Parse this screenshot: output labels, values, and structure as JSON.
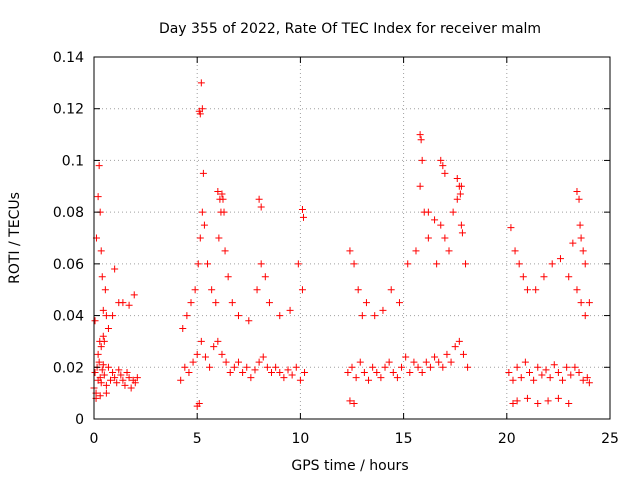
{
  "chart_data": {
    "type": "scatter",
    "title": "Day 355 of 2022, Rate Of TEC Index for receiver malm",
    "xlabel": "GPS time / hours",
    "ylabel": "ROTI / TECUs",
    "xlim": [
      0,
      25
    ],
    "ylim": [
      0,
      0.14
    ],
    "xticks": [
      0,
      5,
      10,
      15,
      20,
      25
    ],
    "xtick_labels": [
      "0",
      "5",
      "10",
      "15",
      "20",
      "25"
    ],
    "yticks": [
      0,
      0.02,
      0.04,
      0.06,
      0.08,
      0.1,
      0.12,
      0.14
    ],
    "ytick_labels": [
      "0",
      "0.02",
      "0.04",
      "0.06",
      "0.08",
      "0.1",
      "0.12",
      "0.14"
    ],
    "grid": true,
    "marker": "plus",
    "color": "#ff0000",
    "series": [
      {
        "x": [
          0.0,
          0.05,
          0.1,
          0.15,
          0.2,
          0.25,
          0.3,
          0.35,
          0.4,
          0.45,
          0.5,
          0.6,
          0.7,
          0.8,
          0.9,
          1.0,
          1.1,
          1.2,
          1.3,
          1.4,
          1.5,
          1.6,
          1.7,
          1.8,
          1.9,
          2.0,
          2.1,
          0.05,
          0.12,
          0.2,
          0.25,
          0.3,
          0.35,
          0.4,
          0.45,
          0.5,
          0.55,
          0.6,
          0.7,
          0.9,
          1.2,
          1.4,
          1.7,
          1.95,
          0.2,
          0.28,
          0.35,
          0.45,
          1.0,
          0.1,
          0.3,
          0.6,
          4.2,
          4.4,
          4.6,
          4.8,
          5.0,
          5.2,
          5.4,
          5.6,
          5.8,
          6.0,
          6.2,
          6.4,
          6.6,
          6.8,
          7.0,
          7.2,
          7.4,
          7.6,
          7.8,
          8.0,
          8.2,
          8.4,
          8.6,
          8.8,
          9.0,
          9.2,
          9.4,
          9.6,
          9.8,
          10.0,
          10.2,
          4.3,
          4.5,
          4.7,
          4.9,
          5.05,
          5.15,
          5.25,
          5.35,
          5.5,
          5.7,
          5.9,
          6.05,
          6.15,
          6.25,
          6.35,
          6.5,
          6.7,
          7.0,
          7.5,
          7.9,
          8.1,
          8.3,
          8.5,
          9.0,
          9.5,
          9.9,
          10.1,
          5.1,
          5.15,
          5.2,
          5.25,
          5.3,
          6.0,
          6.1,
          6.2,
          6.3,
          8.0,
          8.1,
          10.1,
          10.15,
          5.0,
          5.1,
          12.3,
          12.5,
          12.7,
          12.9,
          13.1,
          13.3,
          13.5,
          13.7,
          13.9,
          14.1,
          14.3,
          14.5,
          14.7,
          14.9,
          15.1,
          15.3,
          15.5,
          15.7,
          15.9,
          16.1,
          16.3,
          16.5,
          16.7,
          16.9,
          17.1,
          17.3,
          17.5,
          17.7,
          17.9,
          18.1,
          12.4,
          12.6,
          12.8,
          13.0,
          13.2,
          13.6,
          14.0,
          14.4,
          14.8,
          15.2,
          15.6,
          15.8,
          16.0,
          16.2,
          16.6,
          16.8,
          17.0,
          17.2,
          17.4,
          17.6,
          17.8,
          18.0,
          15.8,
          15.85,
          15.9,
          16.8,
          16.9,
          17.0,
          17.6,
          17.7,
          17.75,
          17.8,
          17.85,
          16.2,
          16.5,
          12.4,
          12.6,
          20.1,
          20.3,
          20.5,
          20.7,
          20.9,
          21.1,
          21.3,
          21.5,
          21.7,
          21.9,
          22.1,
          22.3,
          22.5,
          22.7,
          22.9,
          23.1,
          23.3,
          23.5,
          23.7,
          23.9,
          24.0,
          20.2,
          20.4,
          20.6,
          20.8,
          21.0,
          21.4,
          21.8,
          22.2,
          22.6,
          23.0,
          23.2,
          23.4,
          23.6,
          23.8,
          20.3,
          20.5,
          21.0,
          21.5,
          22.0,
          22.5,
          23.0,
          23.4,
          23.5,
          23.55,
          23.6,
          23.7,
          23.8,
          24.0
        ],
        "y": [
          0.012,
          0.018,
          0.01,
          0.02,
          0.015,
          0.022,
          0.016,
          0.014,
          0.019,
          0.021,
          0.017,
          0.013,
          0.02,
          0.015,
          0.018,
          0.016,
          0.014,
          0.019,
          0.017,
          0.015,
          0.013,
          0.018,
          0.016,
          0.012,
          0.015,
          0.014,
          0.016,
          0.038,
          0.07,
          0.086,
          0.098,
          0.08,
          0.065,
          0.055,
          0.042,
          0.03,
          0.05,
          0.04,
          0.035,
          0.04,
          0.045,
          0.045,
          0.044,
          0.048,
          0.025,
          0.03,
          0.028,
          0.032,
          0.058,
          0.008,
          0.009,
          0.01,
          0.015,
          0.02,
          0.018,
          0.022,
          0.025,
          0.03,
          0.024,
          0.02,
          0.028,
          0.03,
          0.025,
          0.022,
          0.018,
          0.02,
          0.022,
          0.018,
          0.02,
          0.016,
          0.019,
          0.022,
          0.024,
          0.02,
          0.018,
          0.02,
          0.018,
          0.016,
          0.019,
          0.017,
          0.02,
          0.015,
          0.018,
          0.035,
          0.04,
          0.045,
          0.05,
          0.06,
          0.07,
          0.08,
          0.075,
          0.06,
          0.05,
          0.045,
          0.07,
          0.08,
          0.085,
          0.065,
          0.055,
          0.045,
          0.04,
          0.038,
          0.05,
          0.06,
          0.055,
          0.045,
          0.04,
          0.042,
          0.06,
          0.05,
          0.119,
          0.118,
          0.13,
          0.12,
          0.095,
          0.088,
          0.085,
          0.087,
          0.08,
          0.085,
          0.082,
          0.081,
          0.078,
          0.005,
          0.006,
          0.018,
          0.02,
          0.016,
          0.022,
          0.018,
          0.015,
          0.02,
          0.018,
          0.016,
          0.02,
          0.022,
          0.018,
          0.016,
          0.02,
          0.024,
          0.018,
          0.022,
          0.02,
          0.018,
          0.022,
          0.02,
          0.024,
          0.022,
          0.02,
          0.025,
          0.022,
          0.028,
          0.03,
          0.025,
          0.02,
          0.065,
          0.06,
          0.05,
          0.04,
          0.045,
          0.04,
          0.042,
          0.05,
          0.045,
          0.06,
          0.065,
          0.09,
          0.08,
          0.07,
          0.06,
          0.075,
          0.07,
          0.065,
          0.08,
          0.085,
          0.09,
          0.06,
          0.11,
          0.108,
          0.1,
          0.1,
          0.098,
          0.095,
          0.093,
          0.09,
          0.087,
          0.075,
          0.072,
          0.08,
          0.077,
          0.007,
          0.006,
          0.018,
          0.015,
          0.02,
          0.016,
          0.022,
          0.018,
          0.015,
          0.02,
          0.017,
          0.019,
          0.016,
          0.021,
          0.018,
          0.015,
          0.02,
          0.017,
          0.02,
          0.018,
          0.015,
          0.016,
          0.014,
          0.074,
          0.065,
          0.06,
          0.055,
          0.05,
          0.05,
          0.055,
          0.06,
          0.062,
          0.055,
          0.068,
          0.05,
          0.045,
          0.04,
          0.006,
          0.007,
          0.008,
          0.006,
          0.007,
          0.008,
          0.006,
          0.088,
          0.085,
          0.075,
          0.07,
          0.065,
          0.06,
          0.045
        ]
      }
    ]
  }
}
